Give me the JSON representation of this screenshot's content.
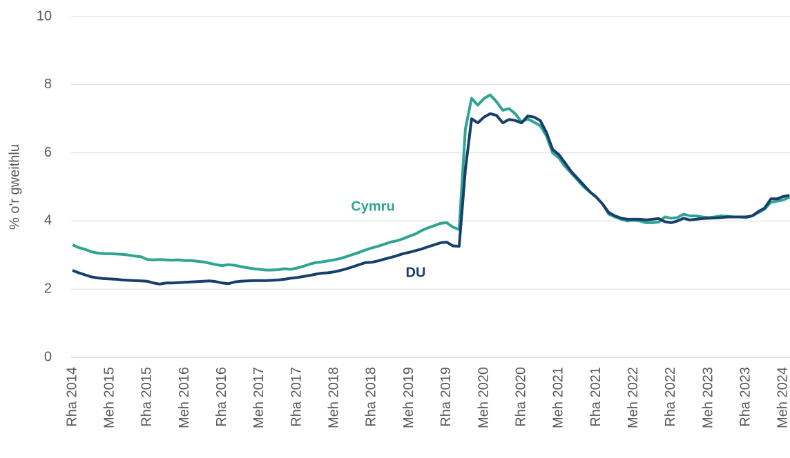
{
  "chart_data": {
    "type": "line",
    "y_label": "% o'r gweithlu",
    "categories": [
      "Rha 2014",
      null,
      null,
      null,
      null,
      null,
      "Meh 2015",
      null,
      null,
      null,
      null,
      null,
      "Rha 2015",
      null,
      null,
      null,
      null,
      null,
      "Meh 2016",
      null,
      null,
      null,
      null,
      null,
      "Rha 2016",
      null,
      null,
      null,
      null,
      null,
      "Meh 2017",
      null,
      null,
      null,
      null,
      null,
      "Rha 2017",
      null,
      null,
      null,
      null,
      null,
      "Meh 2018",
      null,
      null,
      null,
      null,
      null,
      "Rha 2018",
      null,
      null,
      null,
      null,
      null,
      "Meh 2019",
      null,
      null,
      null,
      null,
      null,
      "Rha 2019",
      null,
      null,
      null,
      null,
      null,
      "Meh 2020",
      null,
      null,
      null,
      null,
      null,
      "Rha 2020",
      null,
      null,
      null,
      null,
      null,
      "Meh 2021",
      null,
      null,
      null,
      null,
      null,
      "Rha 2021",
      null,
      null,
      null,
      null,
      null,
      "Meh 2022",
      null,
      null,
      null,
      null,
      null,
      "Rha 2022",
      null,
      null,
      null,
      null,
      null,
      "Meh 2023",
      null,
      null,
      null,
      null,
      null,
      "Rha 2023",
      null,
      null,
      null,
      null,
      null,
      "Meh 2024",
      null
    ],
    "series": [
      {
        "name": "Cymru",
        "color": "#2ea491",
        "values": [
          3.3,
          3.22,
          3.17,
          3.1,
          3.06,
          3.04,
          3.04,
          3.03,
          3.02,
          3.0,
          2.97,
          2.95,
          2.87,
          2.86,
          2.87,
          2.86,
          2.85,
          2.86,
          2.84,
          2.84,
          2.82,
          2.8,
          2.76,
          2.72,
          2.69,
          2.72,
          2.7,
          2.66,
          2.63,
          2.6,
          2.58,
          2.56,
          2.56,
          2.57,
          2.6,
          2.58,
          2.62,
          2.67,
          2.73,
          2.78,
          2.8,
          2.83,
          2.86,
          2.9,
          2.96,
          3.02,
          3.08,
          3.15,
          3.21,
          3.26,
          3.32,
          3.38,
          3.42,
          3.48,
          3.55,
          3.62,
          3.72,
          3.8,
          3.86,
          3.93,
          3.95,
          3.82,
          3.75,
          6.7,
          7.6,
          7.4,
          7.6,
          7.7,
          7.5,
          7.25,
          7.3,
          7.15,
          6.9,
          7.0,
          6.9,
          6.8,
          6.5,
          6.0,
          5.85,
          5.6,
          5.4,
          5.2,
          5.0,
          4.85,
          4.7,
          4.5,
          4.2,
          4.12,
          4.05,
          4.0,
          4.02,
          4.0,
          3.95,
          3.95,
          3.97,
          4.12,
          4.08,
          4.1,
          4.2,
          4.15,
          4.15,
          4.12,
          4.1,
          4.12,
          4.15,
          4.14,
          4.12,
          4.12,
          4.1,
          4.15,
          4.25,
          4.35,
          4.55,
          4.58,
          4.62,
          4.7
        ]
      },
      {
        "name": "DU",
        "color": "#173f6b",
        "values": [
          2.55,
          2.48,
          2.42,
          2.36,
          2.33,
          2.31,
          2.3,
          2.29,
          2.27,
          2.26,
          2.25,
          2.24,
          2.23,
          2.18,
          2.15,
          2.18,
          2.18,
          2.19,
          2.2,
          2.21,
          2.22,
          2.23,
          2.24,
          2.22,
          2.18,
          2.16,
          2.21,
          2.23,
          2.24,
          2.25,
          2.25,
          2.25,
          2.26,
          2.27,
          2.29,
          2.32,
          2.34,
          2.37,
          2.4,
          2.44,
          2.47,
          2.48,
          2.51,
          2.55,
          2.6,
          2.66,
          2.72,
          2.78,
          2.79,
          2.83,
          2.88,
          2.93,
          2.98,
          3.04,
          3.08,
          3.13,
          3.18,
          3.24,
          3.3,
          3.36,
          3.38,
          3.27,
          3.26,
          5.5,
          7.0,
          6.88,
          7.05,
          7.15,
          7.1,
          6.88,
          6.98,
          6.95,
          6.88,
          7.08,
          7.05,
          6.95,
          6.6,
          6.1,
          5.95,
          5.7,
          5.45,
          5.25,
          5.05,
          4.85,
          4.7,
          4.5,
          4.25,
          4.15,
          4.08,
          4.05,
          4.05,
          4.05,
          4.03,
          4.05,
          4.07,
          3.98,
          3.95,
          4.0,
          4.08,
          4.03,
          4.05,
          4.07,
          4.08,
          4.09,
          4.1,
          4.12,
          4.12,
          4.12,
          4.12,
          4.15,
          4.28,
          4.38,
          4.65,
          4.65,
          4.72,
          4.75
        ]
      }
    ],
    "ylim": [
      0,
      10
    ],
    "yticks": [
      0,
      2,
      4,
      6,
      8,
      10
    ],
    "grid": true
  }
}
